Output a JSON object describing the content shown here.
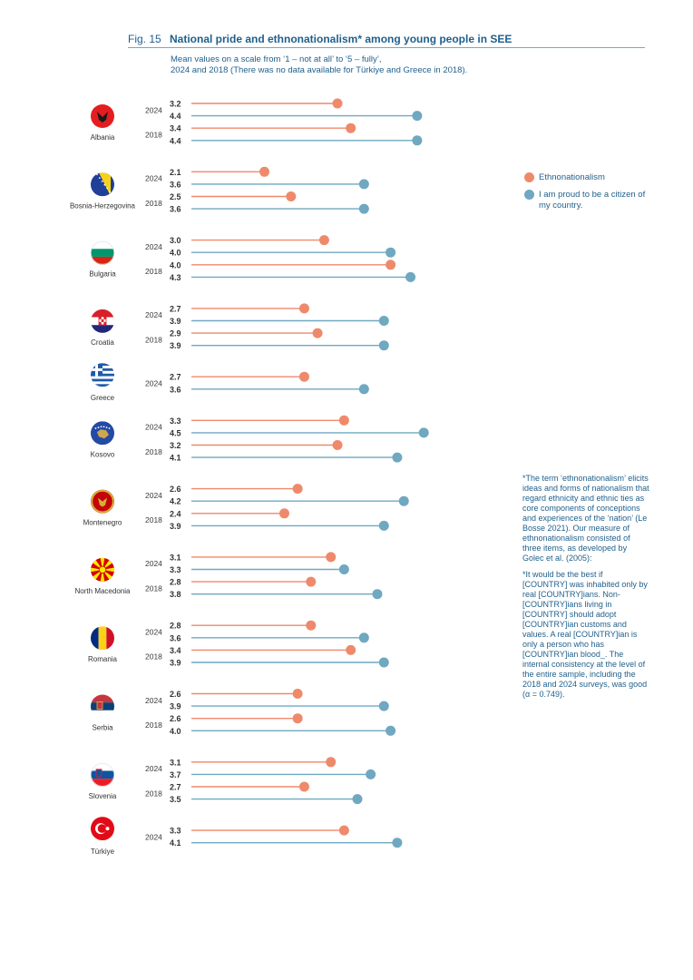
{
  "figure": {
    "number": "Fig. 15",
    "title": "National pride and ethnonationalism* among young people in SEE",
    "subtitle_lines": [
      "Mean values on a scale from ‘1 – not at all’ to ‘5 – fully’,",
      "2024 and 2018 (There was no data available for Türkiye and Greece in 2018)."
    ]
  },
  "colors": {
    "ethno": "#ee8a6b",
    "proud": "#6fa8c0",
    "text": "#1f5f8b",
    "value_text": "#3a3a3a"
  },
  "legend": [
    {
      "key": "ethno",
      "label": "Ethnonationalism"
    },
    {
      "key": "proud",
      "label": "I am proud to be a citizen of my country."
    }
  ],
  "footnote": {
    "p1": "*The term ‘ethnonationalism’ elicits ideas and forms of nationalism that regard ethnicity and ethnic ties as core components of conceptions and experiences of the ‘nation’ (Le Bosse 2021). Our measure of ethnonationalism consisted of three items, as developed by Golec et al. (2005):",
    "p2": "*It would be the best if [COUNTRY] was inhabited only by real [COUNTRY]ians. Non-[COUNTRY]ians living in [COUNTRY] should adopt [COUNTRY]ian customs and values. A real [COUNTRY]ian is only a person who has [COUNTRY]ian blood_. The internal consistency at the level of the entire sample, including the 2018 and 2024 surveys, was good (α = 0.749)."
  },
  "chart_data": {
    "type": "lollipop",
    "scale": [
      1,
      5
    ],
    "series": [
      {
        "key": "ethno",
        "name": "Ethnonationalism"
      },
      {
        "key": "proud",
        "name": "I am proud to be a citizen of my country."
      }
    ],
    "countries": [
      {
        "name": "Albania",
        "icon": "albania-flag-icon",
        "years": [
          {
            "year": "2024",
            "ethno": 3.2,
            "proud": 4.4
          },
          {
            "year": "2018",
            "ethno": 3.4,
            "proud": 4.4
          }
        ]
      },
      {
        "name": "Bosnia-Herzegovina",
        "icon": "bosnia-flag-icon",
        "years": [
          {
            "year": "2024",
            "ethno": 2.1,
            "proud": 3.6
          },
          {
            "year": "2018",
            "ethno": 2.5,
            "proud": 3.6
          }
        ]
      },
      {
        "name": "Bulgaria",
        "icon": "bulgaria-flag-icon",
        "years": [
          {
            "year": "2024",
            "ethno": 3.0,
            "proud": 4.0
          },
          {
            "year": "2018",
            "ethno": 4.0,
            "proud": 4.3
          }
        ]
      },
      {
        "name": "Croatia",
        "icon": "croatia-flag-icon",
        "years": [
          {
            "year": "2024",
            "ethno": 2.7,
            "proud": 3.9
          },
          {
            "year": "2018",
            "ethno": 2.9,
            "proud": 3.9
          }
        ]
      },
      {
        "name": "Greece",
        "icon": "greece-flag-icon",
        "years": [
          {
            "year": "2024",
            "ethno": 2.7,
            "proud": 3.6
          }
        ]
      },
      {
        "name": "Kosovo",
        "icon": "kosovo-flag-icon",
        "years": [
          {
            "year": "2024",
            "ethno": 3.3,
            "proud": 4.5
          },
          {
            "year": "2018",
            "ethno": 3.2,
            "proud": 4.1
          }
        ]
      },
      {
        "name": "Montenegro",
        "icon": "montenegro-flag-icon",
        "years": [
          {
            "year": "2024",
            "ethno": 2.6,
            "proud": 4.2
          },
          {
            "year": "2018",
            "ethno": 2.4,
            "proud": 3.9
          }
        ]
      },
      {
        "name": "North Macedonia",
        "icon": "north-macedonia-flag-icon",
        "years": [
          {
            "year": "2024",
            "ethno": 3.1,
            "proud": 3.3
          },
          {
            "year": "2018",
            "ethno": 2.8,
            "proud": 3.8
          }
        ]
      },
      {
        "name": "Romania",
        "icon": "romania-flag-icon",
        "years": [
          {
            "year": "2024",
            "ethno": 2.8,
            "proud": 3.6
          },
          {
            "year": "2018",
            "ethno": 3.4,
            "proud": 3.9
          }
        ]
      },
      {
        "name": "Serbia",
        "icon": "serbia-flag-icon",
        "years": [
          {
            "year": "2024",
            "ethno": 2.6,
            "proud": 3.9
          },
          {
            "year": "2018",
            "ethno": 2.6,
            "proud": 4.0
          }
        ]
      },
      {
        "name": "Slovenia",
        "icon": "slovenia-flag-icon",
        "years": [
          {
            "year": "2024",
            "ethno": 3.1,
            "proud": 3.7
          },
          {
            "year": "2018",
            "ethno": 2.7,
            "proud": 3.5
          }
        ]
      },
      {
        "name": "Türkiye",
        "icon": "turkiye-flag-icon",
        "years": [
          {
            "year": "2024",
            "ethno": 3.3,
            "proud": 4.1
          }
        ]
      }
    ]
  }
}
